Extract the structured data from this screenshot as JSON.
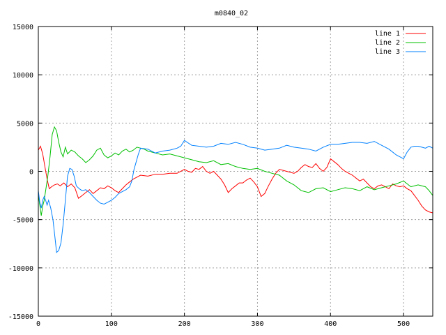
{
  "chart_data": {
    "type": "line",
    "title": "m0840_02",
    "xlabel": "",
    "ylabel": "",
    "xlim": [
      0,
      540
    ],
    "ylim": [
      -15000,
      15000
    ],
    "xticks": [
      0,
      100,
      200,
      300,
      400,
      500
    ],
    "yticks": [
      -15000,
      -10000,
      -5000,
      0,
      5000,
      10000,
      15000
    ],
    "grid": true,
    "legend_position": "top-right",
    "series": [
      {
        "name": "line 1",
        "color": "#ff0000",
        "x": [
          0,
          3,
          6,
          9,
          12,
          15,
          18,
          22,
          26,
          30,
          35,
          40,
          45,
          50,
          55,
          60,
          65,
          70,
          75,
          80,
          85,
          90,
          95,
          100,
          105,
          110,
          115,
          120,
          125,
          130,
          135,
          140,
          150,
          160,
          170,
          180,
          190,
          200,
          205,
          210,
          215,
          220,
          225,
          230,
          235,
          240,
          245,
          250,
          255,
          260,
          265,
          270,
          275,
          280,
          285,
          290,
          295,
          300,
          305,
          310,
          315,
          320,
          325,
          330,
          340,
          350,
          355,
          360,
          365,
          370,
          375,
          380,
          385,
          390,
          395,
          400,
          405,
          410,
          415,
          420,
          425,
          430,
          435,
          440,
          445,
          450,
          455,
          460,
          465,
          470,
          475,
          480,
          485,
          490,
          495,
          500,
          505,
          510,
          515,
          520,
          525,
          530,
          535,
          540
        ],
        "y": [
          2200,
          2600,
          1800,
          500,
          -800,
          -1800,
          -1600,
          -1400,
          -1300,
          -1500,
          -1200,
          -1600,
          -1300,
          -1700,
          -2800,
          -2500,
          -2200,
          -1900,
          -2300,
          -2000,
          -1700,
          -1800,
          -1500,
          -1700,
          -2000,
          -2200,
          -1800,
          -1400,
          -1100,
          -800,
          -600,
          -400,
          -500,
          -300,
          -300,
          -200,
          -200,
          200,
          0,
          -100,
          300,
          200,
          500,
          0,
          -200,
          0,
          -400,
          -800,
          -1400,
          -2200,
          -1800,
          -1500,
          -1200,
          -1200,
          -900,
          -700,
          -1100,
          -1600,
          -2600,
          -2300,
          -1500,
          -800,
          -200,
          200,
          0,
          -200,
          0,
          400,
          700,
          500,
          400,
          800,
          300,
          0,
          400,
          1300,
          1000,
          700,
          300,
          0,
          -200,
          -400,
          -700,
          -1000,
          -800,
          -1200,
          -1600,
          -1800,
          -1500,
          -1400,
          -1600,
          -1800,
          -1300,
          -1500,
          -1600,
          -1500,
          -1800,
          -2000,
          -2500,
          -3000,
          -3600,
          -4000,
          -4200,
          -4300
        ]
      },
      {
        "name": "line 2",
        "color": "#00c000",
        "x": [
          0,
          2,
          4,
          6,
          8,
          10,
          13,
          16,
          19,
          22,
          25,
          28,
          31,
          34,
          37,
          40,
          45,
          50,
          55,
          60,
          65,
          70,
          75,
          80,
          85,
          90,
          95,
          100,
          105,
          110,
          115,
          120,
          125,
          130,
          135,
          140,
          145,
          150,
          160,
          170,
          180,
          190,
          200,
          210,
          220,
          230,
          240,
          250,
          260,
          270,
          280,
          290,
          300,
          310,
          320,
          330,
          340,
          350,
          360,
          370,
          380,
          390,
          400,
          410,
          420,
          430,
          440,
          450,
          460,
          470,
          480,
          490,
          500,
          510,
          520,
          530,
          535,
          540
        ],
        "y": [
          -2400,
          -3500,
          -4600,
          -3600,
          -3000,
          -2000,
          -500,
          1500,
          3800,
          4600,
          4200,
          3000,
          2000,
          1500,
          2500,
          1800,
          2200,
          2000,
          1600,
          1300,
          900,
          1200,
          1600,
          2200,
          2400,
          1700,
          1400,
          1600,
          1900,
          1700,
          2100,
          2300,
          2000,
          2200,
          2500,
          2400,
          2300,
          2100,
          1900,
          1700,
          1800,
          1600,
          1400,
          1200,
          1000,
          900,
          1100,
          700,
          800,
          500,
          300,
          200,
          300,
          0,
          -200,
          -400,
          -1000,
          -1400,
          -2000,
          -2200,
          -1800,
          -1700,
          -2100,
          -1900,
          -1700,
          -1800,
          -2000,
          -1600,
          -1900,
          -1700,
          -1500,
          -1300,
          -1000,
          -1600,
          -1400,
          -1600,
          -2000,
          -2500
        ]
      },
      {
        "name": "line 3",
        "color": "#0080ff",
        "x": [
          0,
          2,
          4,
          6,
          8,
          10,
          12,
          14,
          17,
          20,
          23,
          25,
          28,
          31,
          34,
          37,
          40,
          43,
          46,
          49,
          52,
          56,
          60,
          65,
          70,
          75,
          80,
          85,
          90,
          95,
          100,
          105,
          110,
          115,
          120,
          125,
          128,
          131,
          134,
          137,
          140,
          150,
          160,
          170,
          180,
          190,
          195,
          200,
          210,
          220,
          230,
          240,
          250,
          260,
          270,
          280,
          290,
          300,
          310,
          320,
          330,
          340,
          350,
          360,
          370,
          380,
          390,
          400,
          410,
          420,
          430,
          440,
          450,
          460,
          470,
          480,
          490,
          495,
          500,
          505,
          510,
          515,
          520,
          525,
          530,
          535,
          540
        ],
        "y": [
          -2000,
          -3200,
          -3800,
          -3000,
          -2600,
          -3000,
          -3500,
          -3000,
          -3800,
          -5000,
          -7000,
          -8400,
          -8200,
          -7400,
          -5500,
          -3000,
          -500,
          300,
          200,
          -500,
          -1500,
          -1800,
          -2000,
          -1900,
          -2200,
          -2600,
          -3000,
          -3300,
          -3400,
          -3200,
          -3000,
          -2700,
          -2300,
          -2100,
          -1900,
          -1600,
          -1000,
          200,
          1000,
          1800,
          2400,
          2300,
          1900,
          2100,
          2200,
          2400,
          2600,
          3200,
          2700,
          2600,
          2500,
          2600,
          2900,
          2800,
          3000,
          2800,
          2500,
          2400,
          2200,
          2300,
          2400,
          2700,
          2500,
          2400,
          2300,
          2100,
          2500,
          2800,
          2800,
          2900,
          3000,
          3000,
          2900,
          3100,
          2700,
          2300,
          1700,
          1500,
          1300,
          2000,
          2500,
          2600,
          2600,
          2500,
          2400,
          2600,
          2400
        ]
      }
    ]
  }
}
